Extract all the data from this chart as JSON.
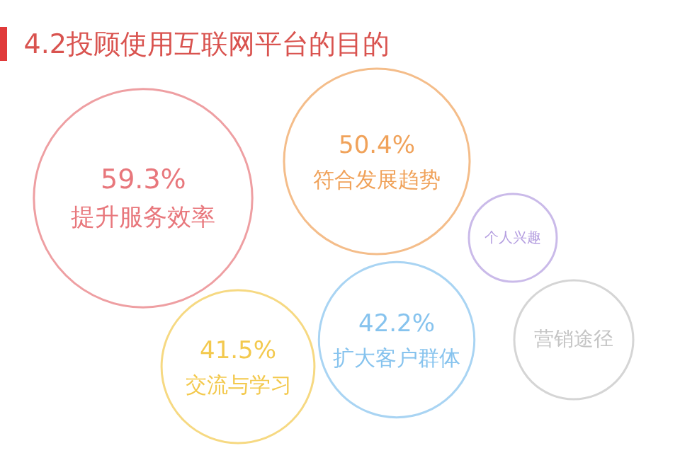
{
  "chart_data": {
    "type": "other",
    "title": "4.2投顾使用互联网平台的目的",
    "categories": [
      "提升服务效率",
      "交流与学习",
      "符合发展趋势",
      "扩大客户群体",
      "个人兴趣",
      "营销途径"
    ],
    "values": [
      59.3,
      41.5,
      50.4,
      42.2,
      null,
      null
    ],
    "value_labels": [
      "59.3%",
      "41.5%",
      "50.4%",
      "42.2%",
      null,
      null
    ],
    "colors": [
      "#e8777c",
      "#f3c94e",
      "#f0a25a",
      "#86c3ee",
      "#b49ee0",
      "#c4c4c4"
    ]
  }
}
